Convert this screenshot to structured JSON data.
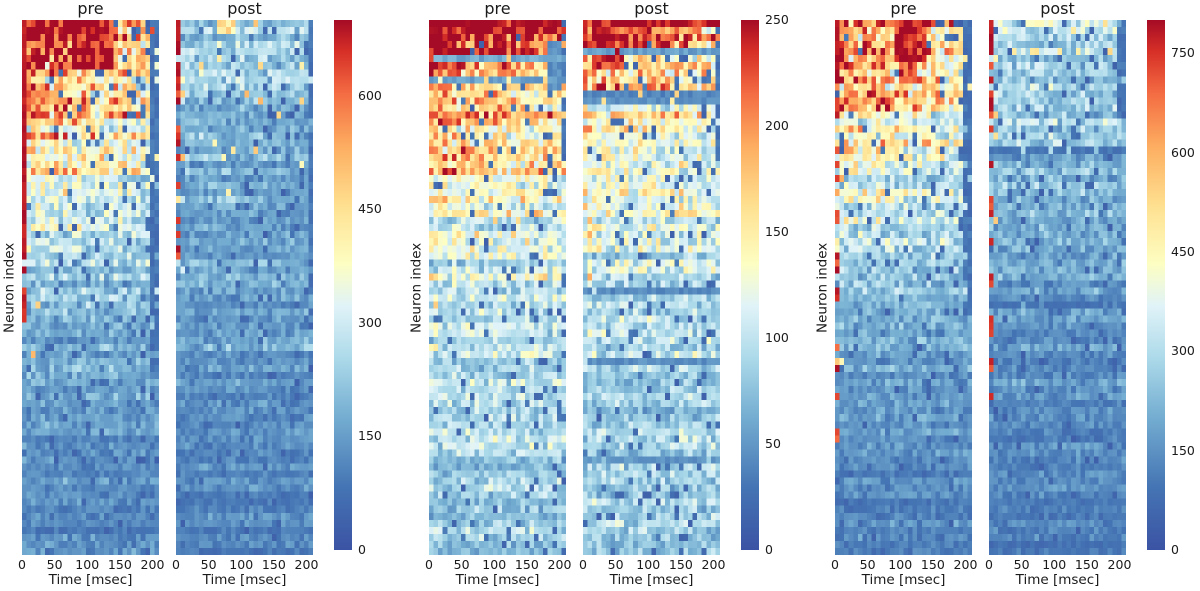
{
  "figure": {
    "background": "#ffffff",
    "text_color": "#1a1a1a"
  },
  "colormap": {
    "name": "RdYlBu_r",
    "stops": [
      [
        0.0,
        "#3b53a4"
      ],
      [
        0.12,
        "#4575b4"
      ],
      [
        0.25,
        "#74add1"
      ],
      [
        0.36,
        "#abd9e9"
      ],
      [
        0.46,
        "#e0f3f8"
      ],
      [
        0.54,
        "#fdfec2"
      ],
      [
        0.65,
        "#fee090"
      ],
      [
        0.76,
        "#fdae61"
      ],
      [
        0.86,
        "#f46d43"
      ],
      [
        0.94,
        "#d73027"
      ],
      [
        1.0,
        "#a50b26"
      ]
    ]
  },
  "chart_data": {
    "type": "heatmap",
    "description": "Three pairs of pre/post neuron firing heatmaps (neurons sorted by rate, hottest at top) with individual colorbars",
    "column_titles": [
      "pre",
      "post"
    ],
    "xlabel": "Time [msec]",
    "ylabel": "Neuron index",
    "x_ticks": [
      0,
      50,
      100,
      150,
      200
    ],
    "x_range": [
      0,
      210
    ],
    "rows": 76,
    "cols": 30,
    "grid": false,
    "panels": [
      {
        "vmax": 700,
        "colorbar_ticks": [
          0,
          150,
          300,
          450,
          600
        ],
        "pre": {
          "seed": 11,
          "row_profile": [
            [
              0,
              600
            ],
            [
              4,
              560
            ],
            [
              8,
              500
            ],
            [
              13,
              440
            ],
            [
              18,
              390
            ],
            [
              24,
              330
            ],
            [
              30,
              270
            ],
            [
              38,
              210
            ],
            [
              48,
              165
            ],
            [
              60,
              135
            ],
            [
              75,
              110
            ]
          ],
          "col_gradient": 0.5,
          "col_gradient_rows": 40,
          "noise": 0.5,
          "speckle_p": 0.055,
          "speckle_right_bias": 1.4,
          "bright_speck_p": 0.05,
          "bright_speck_cols": 4,
          "bright_speck_rows": 50,
          "hot_col0_until": 34,
          "hot_col0_sporadic_until": 44,
          "hot_col0_p": 0.5,
          "cold_right_cols": 2,
          "cold_right_until": 50,
          "hot_patches": [
            [
              0,
              6,
              11,
              19,
              680
            ],
            [
              0,
              3,
              2,
              9,
              640
            ],
            [
              9,
              13,
              0,
              4,
              560
            ]
          ],
          "stripes": []
        },
        "post": {
          "seed": 12,
          "row_profile": [
            [
              0,
              250
            ],
            [
              5,
              230
            ],
            [
              12,
              210
            ],
            [
              20,
              190
            ],
            [
              30,
              170
            ],
            [
              42,
              150
            ],
            [
              56,
              130
            ],
            [
              75,
              110
            ]
          ],
          "col_gradient": 0.12,
          "col_gradient_rows": 40,
          "noise": 0.5,
          "speckle_p": 0.05,
          "speckle_right_bias": 1.2,
          "bright_speck_p": 0.04,
          "bright_speck_cols": 2,
          "bright_speck_rows": 40,
          "warm_speck_p": 0.015,
          "warm_speck_rows": 25,
          "hot_col0_until": 5,
          "hot_col0_sporadic_until": 34,
          "hot_col0_p": 0.5,
          "cold_right_cols": 1,
          "cold_right_until": 40,
          "hot_patches": [
            [
              0,
              1,
              9,
              12,
              430
            ]
          ],
          "stripes": []
        }
      },
      {
        "vmax": 250,
        "colorbar_ticks": [
          0,
          50,
          100,
          150,
          200,
          250
        ],
        "pre": {
          "seed": 21,
          "row_profile": [
            [
              0,
              240
            ],
            [
              3,
              215
            ],
            [
              7,
              185
            ],
            [
              12,
              168
            ],
            [
              18,
              152
            ],
            [
              26,
              130
            ],
            [
              36,
              108
            ],
            [
              48,
              95
            ],
            [
              62,
              86
            ],
            [
              75,
              80
            ]
          ],
          "col_gradient": 0.35,
          "col_gradient_rows": 35,
          "noise": 0.45,
          "speckle_p": 0.06,
          "speckle_right_bias": 1.1,
          "bright_speck_p": 0.18,
          "bright_speck_cols": 2,
          "bright_speck_rows": 45,
          "warm_speck_p": 0.02,
          "warm_speck_rows": 30,
          "hot_col0_until": 2,
          "hot_col0_sporadic_until": 10,
          "hot_col0_p": 0.4,
          "cold_right_cols": 1,
          "cold_right_until": 20,
          "hot_patches": [
            [
              0,
              1,
              0,
              28,
              246
            ],
            [
              4,
              6,
              1,
              7,
              238
            ]
          ],
          "cold_patches": [
            [
              3,
              9,
              26,
              28,
              45
            ]
          ],
          "stripes": [
            [
              5,
              60
            ],
            [
              8,
              55
            ]
          ]
        },
        "post": {
          "seed": 22,
          "row_profile": [
            [
              0,
              235
            ],
            [
              3,
              205
            ],
            [
              7,
              175
            ],
            [
              12,
              158
            ],
            [
              18,
              142
            ],
            [
              26,
              122
            ],
            [
              36,
              102
            ],
            [
              48,
              90
            ],
            [
              62,
              83
            ],
            [
              75,
              78
            ]
          ],
          "col_gradient": 0.3,
          "col_gradient_rows": 35,
          "noise": 0.45,
          "speckle_p": 0.06,
          "speckle_right_bias": 1.1,
          "bright_speck_p": 0.12,
          "bright_speck_cols": 2,
          "bright_speck_rows": 40,
          "warm_speck_p": 0.02,
          "warm_speck_rows": 25,
          "hot_col0_until": 2,
          "hot_col0_sporadic_until": 10,
          "hot_col0_p": 0.4,
          "cold_right_cols": 1,
          "cold_right_until": 20,
          "hot_patches": [
            [
              0,
              0,
              0,
              29,
              246
            ],
            [
              1,
              2,
              0,
              20,
              200
            ],
            [
              4,
              6,
              2,
              8,
              235
            ]
          ],
          "stripes": [
            [
              4,
              55
            ],
            [
              10,
              40
            ],
            [
              11,
              45
            ],
            [
              38,
              42
            ],
            [
              48,
              45
            ],
            [
              62,
              48
            ]
          ]
        }
      },
      {
        "vmax": 800,
        "colorbar_ticks": [
          0,
          150,
          300,
          450,
          600,
          750
        ],
        "pre": {
          "seed": 31,
          "row_profile": [
            [
              0,
              560
            ],
            [
              4,
              530
            ],
            [
              9,
              480
            ],
            [
              14,
              430
            ],
            [
              20,
              370
            ],
            [
              26,
              310
            ],
            [
              34,
              250
            ],
            [
              44,
              200
            ],
            [
              56,
              160
            ],
            [
              75,
              120
            ]
          ],
          "col_gradient": 0.45,
          "col_gradient_rows": 42,
          "noise": 0.5,
          "speckle_p": 0.055,
          "speckle_right_bias": 1.3,
          "bright_speck_p": 0.06,
          "bright_speck_cols": 3,
          "bright_speck_rows": 55,
          "hot_col0_until": 8,
          "hot_col0_sporadic_until": 62,
          "hot_col0_p": 0.35,
          "cold_right_cols": 2,
          "cold_right_until": 42,
          "hot_patches": [
            [
              0,
              5,
              13,
              19,
              780
            ],
            [
              6,
              8,
              14,
              17,
              700
            ]
          ],
          "stripes": []
        },
        "post": {
          "seed": 32,
          "row_profile": [
            [
              0,
              310
            ],
            [
              5,
              285
            ],
            [
              12,
              255
            ],
            [
              20,
              228
            ],
            [
              30,
              200
            ],
            [
              42,
              170
            ],
            [
              56,
              140
            ],
            [
              75,
              112
            ]
          ],
          "col_gradient": 0.1,
          "col_gradient_rows": 40,
          "noise": 0.5,
          "speckle_p": 0.055,
          "speckle_right_bias": 1.2,
          "bright_speck_p": 0.05,
          "bright_speck_cols": 2,
          "bright_speck_rows": 55,
          "warm_speck_p": 0.01,
          "warm_speck_rows": 20,
          "hot_col0_until": 5,
          "hot_col0_sporadic_until": 55,
          "hot_col0_p": 0.35,
          "cold_right_cols": 2,
          "cold_right_until": 14,
          "hot_patches": [
            [
              0,
              0,
              11,
              14,
              420
            ]
          ],
          "stripes": [
            [
              18,
              95
            ],
            [
              40,
              85
            ]
          ]
        }
      }
    ]
  }
}
